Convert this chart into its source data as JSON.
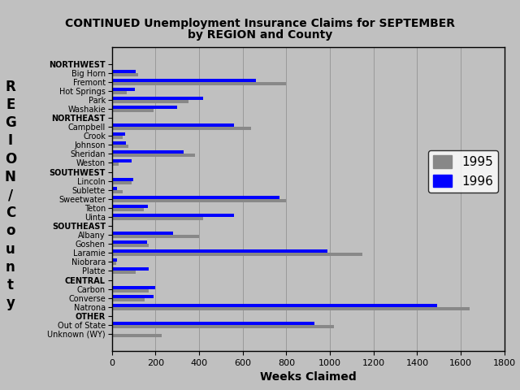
{
  "title_line1": "CONTINUED Unemployment Insurance Claims for SEPTEMBER",
  "title_line2": "by REGION and County",
  "xlabel": "Weeks Claimed",
  "background_color": "#c0c0c0",
  "plot_bg_color": "#c0c0c0",
  "bar_color_1995": "#888888",
  "bar_color_1996": "#0000ff",
  "xlim": [
    0,
    1800
  ],
  "xticks": [
    0,
    200,
    400,
    600,
    800,
    1000,
    1200,
    1400,
    1600,
    1800
  ],
  "categories": [
    "NORTHWEST",
    "Big Horn",
    "Fremont",
    "Hot Springs",
    "Park",
    "Washakie",
    "NORTHEAST",
    "Campbell",
    "Crook",
    "Johnson",
    "Sheridan",
    "Weston",
    "SOUTHWEST",
    "Lincoln",
    "Sublette",
    "Sweetwater",
    "Teton",
    "Uinta",
    "SOUTHEAST",
    "Albany",
    "Goshen",
    "Laramie",
    "Niobrara",
    "Platte",
    "CENTRAL",
    "Carbon",
    "Converse",
    "Natrona",
    "OTHER",
    "Out of State",
    "Unknown (WY)"
  ],
  "values_1995": [
    0,
    120,
    800,
    70,
    350,
    190,
    0,
    640,
    50,
    75,
    380,
    30,
    0,
    90,
    50,
    800,
    145,
    420,
    0,
    400,
    170,
    1150,
    20,
    110,
    0,
    170,
    150,
    1640,
    0,
    1020,
    230
  ],
  "values_1996": [
    0,
    110,
    660,
    105,
    420,
    300,
    0,
    560,
    60,
    65,
    330,
    90,
    0,
    100,
    25,
    770,
    165,
    560,
    0,
    280,
    160,
    990,
    25,
    170,
    0,
    200,
    190,
    1490,
    0,
    930,
    0
  ],
  "region_labels": [
    "NORTHWEST",
    "NORTHEAST",
    "SOUTHWEST",
    "SOUTHEAST",
    "CENTRAL",
    "OTHER"
  ],
  "legend_1995": "1995",
  "legend_1996": "1996"
}
